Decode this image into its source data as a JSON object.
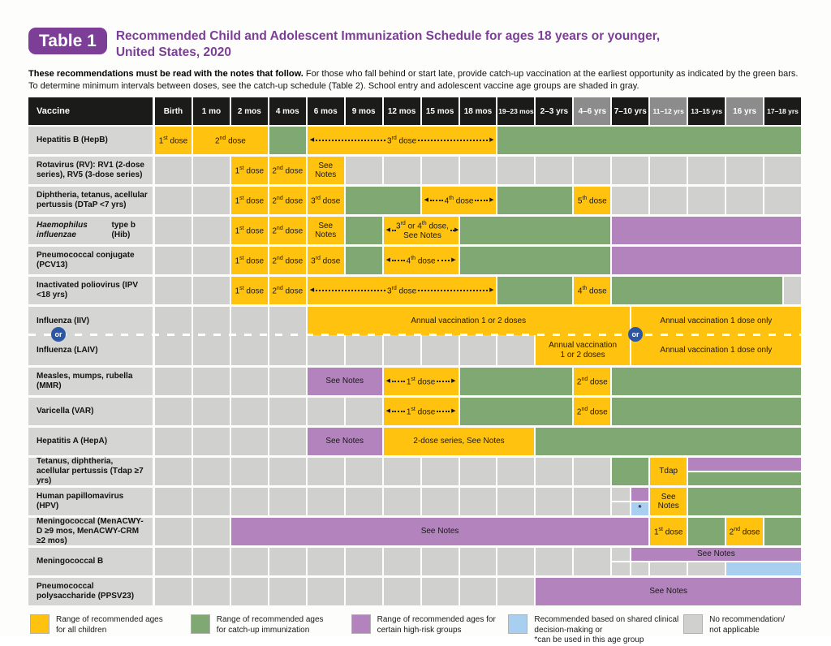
{
  "title": {
    "badge": "Table 1",
    "line1": "Recommended Child and Adolescent Immunization Schedule for ages 18 years or younger,",
    "line2": "United States, 2020"
  },
  "intro": {
    "bold": "These recommendations must be read with the notes that follow.",
    "rest": " For those who fall behind or start late, provide catch-up vaccination at the earliest opportunity as indicated by the green bars.",
    "line2": "To determine minimum intervals between doses, see the catch-up schedule (Table 2). School entry and adolescent vaccine age groups are shaded in gray."
  },
  "colors": {
    "yellow": "#FFC20E",
    "green": "#7FA873",
    "purple": "#B283BC",
    "blue": "#A9CFF0",
    "graycell": "#D0D0CE",
    "labelbg": "#D5D5D3",
    "headerbg": "#1B1B19",
    "headershade": "#8C8C8C",
    "accent": "#7D3E98",
    "orblue": "#2A56A4"
  },
  "icons": {
    "arrow_left": "◀",
    "arrow_right": "▶"
  },
  "table": {
    "vaccine_header": "Vaccine",
    "or_label": "or",
    "columns": [
      {
        "label": "Birth",
        "shaded": false
      },
      {
        "label": "1 mo",
        "shaded": false
      },
      {
        "label": "2 mos",
        "shaded": false
      },
      {
        "label": "4 mos",
        "shaded": false
      },
      {
        "label": "6 mos",
        "shaded": false
      },
      {
        "label": "9 mos",
        "shaded": false
      },
      {
        "label": "12 mos",
        "shaded": false
      },
      {
        "label": "15 mos",
        "shaded": false
      },
      {
        "label": "18 mos",
        "shaded": false
      },
      {
        "label": "19–23 mos",
        "shaded": false
      },
      {
        "label": "2–3 yrs",
        "shaded": false
      },
      {
        "label": "4–6 yrs",
        "shaded": true
      },
      {
        "label": "7–10 yrs",
        "shaded": false
      },
      {
        "label": "11–12 yrs",
        "shaded": true
      },
      {
        "label": "13–15 yrs",
        "shaded": false
      },
      {
        "label": "16 yrs",
        "shaded": true
      },
      {
        "label": "17–18 yrs",
        "shaded": false
      }
    ],
    "rows": [
      {
        "id": "hepb",
        "label": "Hepatitis B (HepB)",
        "cells": [
          {
            "c": 1,
            "s": 1,
            "color": "yellow",
            "label": "1st dose"
          },
          {
            "c": 2,
            "s": 2,
            "color": "yellow",
            "label": "2nd dose"
          },
          {
            "c": 4,
            "s": 1,
            "color": "green"
          },
          {
            "c": 5,
            "s": 5,
            "color": "yellow",
            "label": "3rd dose",
            "arrows": true
          },
          {
            "c": 10,
            "s": 8,
            "color": "green"
          }
        ]
      },
      {
        "id": "rv",
        "label": "Rotavirus (RV): RV1 (2-dose series), RV5 (3-dose series)",
        "cells": [
          {
            "c": 3,
            "s": 1,
            "color": "yellow",
            "label": "1st dose"
          },
          {
            "c": 4,
            "s": 1,
            "color": "yellow",
            "label": "2nd dose"
          },
          {
            "c": 5,
            "s": 1,
            "color": "yellow",
            "label": "See Notes"
          }
        ]
      },
      {
        "id": "dtap",
        "label": "Diphtheria, tetanus, acellular pertussis (DTaP <7 yrs)",
        "cells": [
          {
            "c": 3,
            "s": 1,
            "color": "yellow",
            "label": "1st dose"
          },
          {
            "c": 4,
            "s": 1,
            "color": "yellow",
            "label": "2nd dose"
          },
          {
            "c": 5,
            "s": 1,
            "color": "yellow",
            "label": "3rd dose"
          },
          {
            "c": 6,
            "s": 2,
            "color": "green"
          },
          {
            "c": 8,
            "s": 2,
            "color": "yellow",
            "label": "4th dose",
            "arrows": true
          },
          {
            "c": 10,
            "s": 2,
            "color": "green"
          },
          {
            "c": 12,
            "s": 1,
            "color": "yellow",
            "label": "5th dose"
          }
        ]
      },
      {
        "id": "hib",
        "italic_prefix": "Haemophilus influenzae",
        "label_rest": " type b (Hib)",
        "label": "Haemophilus influenzae type b (Hib)",
        "cells": [
          {
            "c": 3,
            "s": 1,
            "color": "yellow",
            "label": "1st dose"
          },
          {
            "c": 4,
            "s": 1,
            "color": "yellow",
            "label": "2nd dose"
          },
          {
            "c": 5,
            "s": 1,
            "color": "yellow",
            "label": "See Notes"
          },
          {
            "c": 6,
            "s": 1,
            "color": "green"
          },
          {
            "c": 7,
            "s": 2,
            "color": "yellow",
            "label": "3rd or 4th dose,\nSee Notes",
            "arrows": true
          },
          {
            "c": 9,
            "s": 4,
            "color": "green"
          },
          {
            "c": 13,
            "s": 5,
            "color": "purple"
          }
        ]
      },
      {
        "id": "pcv13",
        "label": "Pneumococcal conjugate (PCV13)",
        "cells": [
          {
            "c": 3,
            "s": 1,
            "color": "yellow",
            "label": "1st dose"
          },
          {
            "c": 4,
            "s": 1,
            "color": "yellow",
            "label": "2nd dose"
          },
          {
            "c": 5,
            "s": 1,
            "color": "yellow",
            "label": "3rd dose"
          },
          {
            "c": 6,
            "s": 1,
            "color": "green"
          },
          {
            "c": 7,
            "s": 2,
            "color": "yellow",
            "label": "4th dose",
            "arrows": true
          },
          {
            "c": 9,
            "s": 4,
            "color": "green"
          },
          {
            "c": 13,
            "s": 5,
            "color": "purple"
          }
        ]
      },
      {
        "id": "ipv",
        "label": "Inactivated poliovirus (IPV <18 yrs)",
        "cells": [
          {
            "c": 3,
            "s": 1,
            "color": "yellow",
            "label": "1st dose"
          },
          {
            "c": 4,
            "s": 1,
            "color": "yellow",
            "label": "2nd dose"
          },
          {
            "c": 5,
            "s": 5,
            "color": "yellow",
            "label": "3rd dose",
            "arrows": true
          },
          {
            "c": 10,
            "s": 2,
            "color": "green"
          },
          {
            "c": 12,
            "s": 1,
            "color": "yellow",
            "label": "4th dose"
          },
          {
            "c": 13,
            "s": 4.5,
            "color": "green"
          },
          {
            "c": 17.5,
            "s": 0.5,
            "color": "gray"
          }
        ]
      },
      {
        "id": "iiv",
        "label": "Influenza (IIV)",
        "no_gap": true,
        "cells": [
          {
            "c": 5,
            "s": 8.5,
            "color": "yellow",
            "label": "Annual vaccination 1 or 2 doses"
          },
          {
            "c": 13.5,
            "s": 4.5,
            "color": "yellow",
            "label": "Annual vaccination 1 dose only"
          }
        ]
      },
      {
        "id": "laiv",
        "label": "Influenza (LAIV)",
        "divider_before": true,
        "cells": [
          {
            "c": 11,
            "s": 2.5,
            "color": "yellow",
            "label": "Annual vaccination\n1 or 2 doses"
          },
          {
            "c": 13.5,
            "s": 4.5,
            "color": "yellow",
            "label": "Annual vaccination 1 dose only"
          }
        ]
      },
      {
        "id": "mmr",
        "label": "Measles, mumps, rubella (MMR)",
        "cells": [
          {
            "c": 5,
            "s": 2,
            "color": "purple",
            "label": "See Notes"
          },
          {
            "c": 7,
            "s": 2,
            "color": "yellow",
            "label": "1st dose",
            "arrows": true
          },
          {
            "c": 9,
            "s": 3,
            "color": "green"
          },
          {
            "c": 12,
            "s": 1,
            "color": "yellow",
            "label": "2nd dose"
          },
          {
            "c": 13,
            "s": 5,
            "color": "green"
          }
        ]
      },
      {
        "id": "var",
        "label": "Varicella (VAR)",
        "cells": [
          {
            "c": 7,
            "s": 2,
            "color": "yellow",
            "label": "1st dose",
            "arrows": true
          },
          {
            "c": 9,
            "s": 3,
            "color": "green"
          },
          {
            "c": 12,
            "s": 1,
            "color": "yellow",
            "label": "2nd dose"
          },
          {
            "c": 13,
            "s": 5,
            "color": "green"
          }
        ]
      },
      {
        "id": "hepa",
        "label": "Hepatitis A (HepA)",
        "cells": [
          {
            "c": 5,
            "s": 2,
            "color": "purple",
            "label": "See Notes"
          },
          {
            "c": 7,
            "s": 4,
            "color": "yellow",
            "label": "2-dose series, See Notes"
          },
          {
            "c": 11,
            "s": 7,
            "color": "green"
          }
        ]
      },
      {
        "id": "tdap",
        "label": "Tetanus, diphtheria, acellular pertussis (Tdap ≥7 yrs)",
        "cells": [
          {
            "c": 13,
            "s": 1,
            "color": "green"
          },
          {
            "c": 14,
            "s": 1,
            "color": "yellow",
            "label": "Tdap"
          },
          {
            "c": 15,
            "s": 3,
            "color": "purple",
            "half": "top"
          },
          {
            "c": 15,
            "s": 3,
            "color": "green",
            "half": "bottom"
          }
        ]
      },
      {
        "id": "hpv",
        "label": "Human papillomavirus (HPV)",
        "cells": [
          {
            "c": 13,
            "s": 0.5,
            "color": "gray",
            "half": "top"
          },
          {
            "c": 13,
            "s": 0.5,
            "color": "gray",
            "half": "bottom"
          },
          {
            "c": 13.5,
            "s": 0.5,
            "color": "purple",
            "half": "top"
          },
          {
            "c": 13.5,
            "s": 0.5,
            "color": "blue",
            "half": "bottom",
            "label": "*"
          },
          {
            "c": 14,
            "s": 1,
            "color": "yellow",
            "label": "See\nNotes"
          },
          {
            "c": 15,
            "s": 3,
            "color": "green"
          }
        ]
      },
      {
        "id": "menacwy",
        "label": "Meningococcal (MenACWY-D ≥9 mos, MenACWY-CRM ≥2 mos)",
        "cells": [
          {
            "c": 3,
            "s": 11,
            "color": "purple",
            "label": "See Notes"
          },
          {
            "c": 14,
            "s": 1,
            "color": "yellow",
            "label": "1st dose"
          },
          {
            "c": 15,
            "s": 1,
            "color": "green"
          },
          {
            "c": 16,
            "s": 1,
            "color": "yellow",
            "label": "2nd dose"
          },
          {
            "c": 17,
            "s": 1,
            "color": "green"
          }
        ]
      },
      {
        "id": "menb",
        "label": "Meningococcal B",
        "cells": [
          {
            "c": 13,
            "s": 0.5,
            "color": "gray",
            "half": "top"
          },
          {
            "c": 13,
            "s": 0.5,
            "color": "gray",
            "half": "bottom"
          },
          {
            "c": 13.5,
            "s": 4.5,
            "color": "purple",
            "half": "top",
            "label": "See Notes"
          },
          {
            "c": 13.5,
            "s": 0.5,
            "color": "gray",
            "half": "bottom"
          },
          {
            "c": 14,
            "s": 1,
            "color": "gray",
            "half": "bottom"
          },
          {
            "c": 15,
            "s": 1,
            "color": "gray",
            "half": "bottom"
          },
          {
            "c": 16,
            "s": 2,
            "color": "blue",
            "half": "bottom"
          }
        ]
      },
      {
        "id": "ppsv23",
        "label": "Pneumococcal polysaccharide (PPSV23)",
        "cells": [
          {
            "c": 11,
            "s": 7,
            "color": "purple",
            "label": "See Notes"
          }
        ]
      }
    ]
  },
  "legend": [
    {
      "color": "yellow",
      "label": "Range of recommended ages\nfor all children"
    },
    {
      "color": "green",
      "label": "Range of recommended ages\nfor catch-up immunization"
    },
    {
      "color": "purple",
      "label": "Range of recommended ages for\ncertain high-risk groups"
    },
    {
      "color": "blue",
      "label": "Recommended based on shared clinical\ndecision-making or\n*can be used in this age group"
    },
    {
      "color": "gray",
      "label": "No recommendation/\nnot applicable"
    }
  ]
}
